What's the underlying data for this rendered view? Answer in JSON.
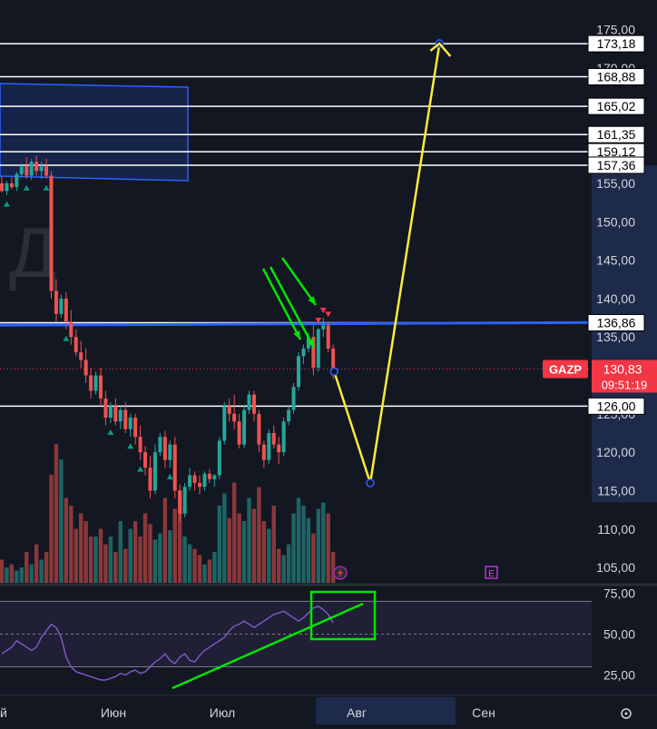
{
  "chart_data": {
    "type": "candlestick",
    "symbol": "GAZP",
    "price_axis": {
      "range": [
        103,
        176.5
      ],
      "ticks": [
        "175,00",
        "170,00",
        "165,00",
        "160,00",
        "155,00",
        "150,00",
        "145,00",
        "140,00",
        "135,00",
        "130,00",
        "125,00",
        "120,00",
        "115,00",
        "110,00",
        "105,00"
      ],
      "tick_values": [
        175,
        170,
        165,
        160,
        155,
        150,
        145,
        140,
        135,
        130,
        125,
        120,
        115,
        110,
        105
      ],
      "side": "right"
    },
    "time_axis": {
      "labels": [
        "й",
        "Июн",
        "Июл",
        "Авг",
        "Сен"
      ],
      "highlighted": "Авг"
    },
    "current_price": {
      "symbol": "GAZP",
      "price": "130,83",
      "countdown": "09:51:19",
      "value": 130.83
    },
    "horizontal_levels": [
      {
        "label": "173,18",
        "value": 173.18,
        "color": "#ffffff"
      },
      {
        "label": "168,88",
        "value": 168.88,
        "color": "#ffffff"
      },
      {
        "label": "165,02",
        "value": 165.02,
        "color": "#ffffff"
      },
      {
        "label": "161,35",
        "value": 161.35,
        "color": "#ffffff"
      },
      {
        "label": "159,12",
        "value": 159.12,
        "color": "#ffffff"
      },
      {
        "label": "157,36",
        "value": 157.36,
        "color": "#ffffff"
      },
      {
        "label": "136,86",
        "value": 136.86,
        "color": "#ffffff"
      },
      {
        "label": "126,00",
        "value": 126.0,
        "color": "#ffffff"
      }
    ],
    "blue_level": {
      "value": 137.0,
      "color": "#2962ff"
    },
    "candles_ohlc": [
      [
        155.0,
        156.0,
        153.8,
        154.0
      ],
      [
        154.0,
        155.3,
        153.5,
        155.0
      ],
      [
        155.0,
        155.8,
        154.2,
        154.5
      ],
      [
        154.5,
        156.5,
        154.0,
        156.2
      ],
      [
        156.2,
        157.6,
        155.8,
        157.2
      ],
      [
        157.2,
        158.4,
        155.6,
        156.0
      ],
      [
        156.0,
        158.2,
        155.4,
        157.8
      ],
      [
        157.8,
        158.6,
        156.0,
        156.6
      ],
      [
        156.6,
        157.8,
        155.6,
        157.2
      ],
      [
        157.2,
        158.2,
        155.6,
        156.0
      ],
      [
        156.0,
        156.6,
        140.0,
        141.0
      ],
      [
        141.0,
        142.5,
        137.0,
        138.0
      ],
      [
        138.0,
        140.5,
        137.5,
        140.0
      ],
      [
        140.0,
        140.8,
        136.0,
        137.0
      ],
      [
        137.0,
        138.5,
        134.0,
        135.0
      ],
      [
        135.0,
        136.0,
        132.5,
        133.0
      ],
      [
        133.0,
        134.5,
        131.0,
        132.0
      ],
      [
        132.0,
        133.5,
        129.0,
        130.0
      ],
      [
        130.0,
        131.0,
        127.0,
        128.0
      ],
      [
        128.0,
        130.5,
        127.5,
        130.0
      ],
      [
        130.0,
        131.0,
        126.0,
        127.0
      ],
      [
        127.0,
        128.0,
        123.5,
        124.5
      ],
      [
        124.5,
        126.5,
        123.8,
        126.0
      ],
      [
        126.0,
        127.0,
        123.5,
        124.0
      ],
      [
        124.0,
        126.0,
        123.0,
        125.5
      ],
      [
        125.5,
        126.5,
        122.5,
        123.0
      ],
      [
        123.0,
        125.0,
        122.0,
        124.5
      ],
      [
        124.5,
        125.0,
        121.0,
        122.0
      ],
      [
        122.0,
        123.5,
        119.0,
        120.0
      ],
      [
        120.0,
        120.8,
        117.0,
        118.0
      ],
      [
        118.0,
        119.5,
        114.0,
        115.0
      ],
      [
        115.0,
        121.0,
        114.5,
        120.0
      ],
      [
        120.0,
        122.5,
        119.5,
        122.0
      ],
      [
        122.0,
        122.8,
        118.0,
        119.0
      ],
      [
        119.0,
        121.5,
        118.0,
        121.0
      ],
      [
        121.0,
        122.0,
        114.0,
        115.0
      ],
      [
        115.0,
        115.8,
        111.0,
        112.0
      ],
      [
        112.0,
        116.0,
        111.5,
        115.5
      ],
      [
        115.5,
        118.0,
        115.0,
        117.0
      ],
      [
        117.0,
        117.5,
        115.0,
        116.0
      ],
      [
        116.0,
        117.0,
        114.5,
        115.5
      ],
      [
        115.5,
        117.5,
        115.0,
        117.2
      ],
      [
        117.2,
        117.8,
        116.0,
        116.5
      ],
      [
        116.5,
        117.2,
        115.5,
        117.0
      ],
      [
        117.0,
        122.0,
        116.5,
        121.5
      ],
      [
        121.5,
        126.5,
        121.0,
        126.0
      ],
      [
        126.0,
        127.0,
        124.0,
        125.0
      ],
      [
        125.0,
        127.5,
        123.0,
        124.0
      ],
      [
        124.0,
        125.0,
        120.5,
        121.0
      ],
      [
        121.0,
        126.0,
        120.5,
        125.5
      ],
      [
        125.5,
        128.0,
        125.0,
        127.5
      ],
      [
        127.5,
        128.0,
        124.0,
        125.0
      ],
      [
        125.0,
        125.5,
        120.0,
        121.0
      ],
      [
        121.0,
        121.5,
        118.0,
        119.0
      ],
      [
        119.0,
        123.0,
        118.5,
        122.5
      ],
      [
        122.5,
        123.5,
        120.5,
        121.0
      ],
      [
        121.0,
        122.0,
        118.5,
        120.0
      ],
      [
        120.0,
        124.5,
        119.5,
        124.0
      ],
      [
        124.0,
        126.0,
        123.5,
        125.5
      ],
      [
        125.5,
        129.0,
        125.0,
        128.5
      ],
      [
        128.5,
        133.0,
        128.0,
        132.5
      ],
      [
        132.5,
        134.0,
        131.5,
        133.5
      ],
      [
        133.5,
        135.5,
        133.0,
        135.0
      ],
      [
        135.0,
        136.5,
        130.0,
        131.0
      ],
      [
        131.0,
        136.2,
        130.5,
        136.0
      ],
      [
        136.0,
        137.5,
        135.0,
        136.5
      ],
      [
        136.5,
        137.0,
        133.0,
        133.5
      ],
      [
        133.5,
        134.0,
        129.5,
        130.0
      ]
    ],
    "volume_bar_heights_relative": [
      0.15,
      0.1,
      0.12,
      0.08,
      0.1,
      0.2,
      0.12,
      0.25,
      0.15,
      0.2,
      0.7,
      0.9,
      0.8,
      0.55,
      0.5,
      0.35,
      0.45,
      0.4,
      0.3,
      0.3,
      0.35,
      0.25,
      0.3,
      0.2,
      0.4,
      0.22,
      0.35,
      0.4,
      0.3,
      0.45,
      0.38,
      0.28,
      0.32,
      0.55,
      0.34,
      0.48,
      0.6,
      0.3,
      0.25,
      0.22,
      0.18,
      0.12,
      0.15,
      0.2,
      0.5,
      0.58,
      0.42,
      0.65,
      0.45,
      0.4,
      0.55,
      0.48,
      0.62,
      0.4,
      0.35,
      0.5,
      0.22,
      0.18,
      0.25,
      0.45,
      0.55,
      0.5,
      0.42,
      0.32,
      0.48,
      0.52,
      0.45,
      0.2
    ],
    "markers": {
      "green_up_after_index": [
        1,
        5,
        9,
        13,
        22,
        26,
        28,
        34
      ],
      "red_down_after_index": [
        64,
        65,
        66
      ]
    },
    "yellow_forecast_path": [
      {
        "index": 67.2,
        "value": 130.5
      },
      {
        "index": 74.5,
        "value": 116.0
      },
      {
        "index": 88.5,
        "value": 173.2
      }
    ],
    "rsi": {
      "ticks": [
        "75,00",
        "50,00",
        "25,00"
      ],
      "tick_values": [
        75,
        50,
        25
      ],
      "range": [
        17,
        78
      ],
      "band": [
        30,
        70
      ],
      "values": [
        38,
        40,
        42,
        46,
        44,
        42,
        40,
        42,
        48,
        52,
        56,
        54,
        48,
        36,
        30,
        27,
        26,
        25,
        24,
        23,
        22,
        22,
        23,
        24,
        26,
        25,
        27,
        28,
        26,
        27,
        30,
        33,
        35,
        38,
        34,
        32,
        36,
        38,
        34,
        33,
        37,
        40,
        42,
        44,
        46,
        48,
        52,
        55,
        56,
        58,
        56,
        54,
        56,
        58,
        60,
        62,
        63,
        64,
        62,
        60,
        58,
        60,
        63,
        66,
        67,
        65,
        62,
        57
      ]
    },
    "annotations": [
      {
        "type": "arrow",
        "color": "#00e600"
      },
      {
        "type": "arrow",
        "color": "#00e600"
      },
      {
        "type": "arrow",
        "color": "#00e600"
      },
      {
        "type": "trendline",
        "color": "#00e600"
      },
      {
        "type": "box",
        "color": "#00e600"
      }
    ],
    "watermark": "Д",
    "event_badge": "E"
  },
  "colors": {
    "up": "#26a69a",
    "down": "#ef5350",
    "rsi": "#7e57c2",
    "background": "#131722",
    "axis_text": "#d1d4dc",
    "level_label_bg": "#ffffff",
    "level_label_text": "#000000",
    "price_badge": "#f23645",
    "zone": "#2962ff",
    "forecast": "#ffeb3b",
    "annotation": "#00e600"
  },
  "icons": {
    "lightning": "lightning-icon",
    "settings": "gear-icon"
  }
}
